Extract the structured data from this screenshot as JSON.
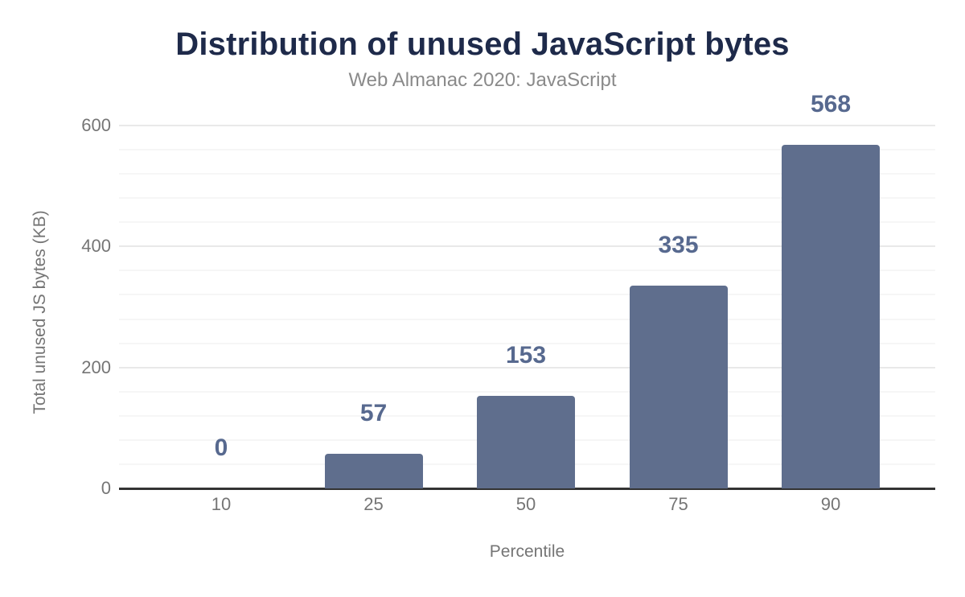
{
  "chart_data": {
    "type": "bar",
    "title": "Distribution of unused JavaScript bytes",
    "subtitle": "Web Almanac 2020: JavaScript",
    "xlabel": "Percentile",
    "ylabel": "Total unused JS bytes (KB)",
    "categories": [
      "10",
      "25",
      "50",
      "75",
      "90"
    ],
    "values": [
      0,
      57,
      153,
      335,
      568
    ],
    "data_labels": [
      "0",
      "57",
      "153",
      "335",
      "568"
    ],
    "ylim": [
      0,
      600
    ],
    "yticks": [
      0,
      200,
      400,
      600
    ],
    "ytick_labels": [
      "0",
      "200",
      "400",
      "600"
    ],
    "minor_gridline_step": 40,
    "grid": true,
    "legend": "none",
    "colors": {
      "bar": "#5f6e8d",
      "data_label": "#57698f",
      "title": "#1e2a4a",
      "subtitle": "#8a8a8a",
      "tick_label": "#757575",
      "axis_title": "#757575",
      "axis_line": "#333333",
      "major_grid": "#e9e9e9",
      "minor_grid": "#f6f6f6",
      "background": "#ffffff"
    }
  }
}
